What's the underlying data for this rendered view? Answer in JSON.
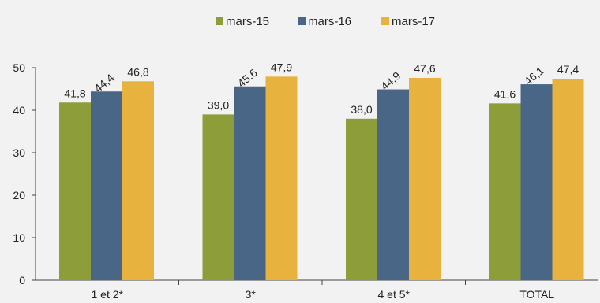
{
  "chart_data": {
    "type": "bar",
    "categories": [
      "1 et 2*",
      "3*",
      "4 et 5*",
      "TOTAL"
    ],
    "series": [
      {
        "name": "mars-15",
        "color": "#8c9d3a",
        "values": [
          41.8,
          39.0,
          38.0,
          41.6
        ],
        "labels": [
          "41,8",
          "39,0",
          "38,0",
          "41,6"
        ]
      },
      {
        "name": "mars-16",
        "color": "#4a6687",
        "values": [
          44.4,
          45.6,
          44.9,
          46.1
        ],
        "labels": [
          "44,4",
          "45,6",
          "44,9",
          "46,1"
        ]
      },
      {
        "name": "mars-17",
        "color": "#e8b23e",
        "values": [
          46.8,
          47.9,
          47.6,
          47.4
        ],
        "labels": [
          "46,8",
          "47,9",
          "47,6",
          "47,4"
        ]
      }
    ],
    "ylim": [
      0,
      50
    ],
    "yticks": [
      "0",
      "10",
      "20",
      "30",
      "40",
      "50"
    ],
    "legend_position": "top",
    "grid": false
  }
}
